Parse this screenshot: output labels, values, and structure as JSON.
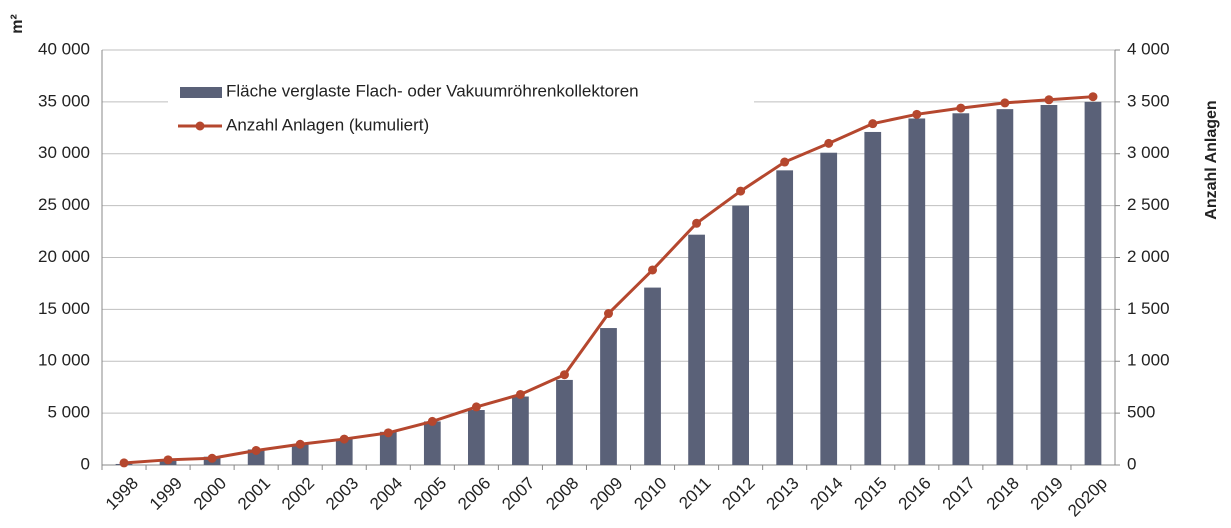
{
  "chart_data": {
    "type": "bar_line",
    "ylabel": "m²",
    "y2label": "Anzahl Anlagen",
    "categories": [
      "1998",
      "1999",
      "2000",
      "2001",
      "2002",
      "2003",
      "2004",
      "2005",
      "2006",
      "2007",
      "2008",
      "2009",
      "2010",
      "2011",
      "2012",
      "2013",
      "2014",
      "2015",
      "2016",
      "2017",
      "2018",
      "2019",
      "2020p"
    ],
    "series": [
      {
        "name": "Fläche verglaste Flach- oder Vakuumröhrenkollektoren",
        "color": "#5a6178",
        "type": "bar",
        "values": [
          100,
          400,
          800,
          1500,
          2000,
          2500,
          3200,
          4200,
          5300,
          6600,
          8200,
          13200,
          17100,
          22200,
          25000,
          28400,
          30100,
          32100,
          33400,
          33900,
          34300,
          34700,
          35000
        ]
      },
      {
        "name": "Anzahl Anlagen (kumuliert)",
        "color": "#b5472e",
        "type": "line",
        "axis": "y2",
        "values": [
          20,
          50,
          65,
          140,
          200,
          250,
          310,
          420,
          560,
          680,
          870,
          1460,
          1880,
          2330,
          2640,
          2920,
          3100,
          3290,
          3380,
          3440,
          3490,
          3520,
          3550
        ]
      }
    ],
    "ylim": [
      0,
      40000
    ],
    "yticks": [
      0,
      {
        "value": 5000,
        "label": "5 000"
      },
      {
        "value": 10000,
        "label": "10 000"
      },
      {
        "value": 15000,
        "label": "15 000"
      },
      {
        "value": 20000,
        "label": "20 000"
      },
      {
        "value": 25000,
        "label": "25 000"
      },
      {
        "value": 30000,
        "label": "30 000"
      },
      {
        "value": 35000,
        "label": "35 000"
      },
      {
        "value": 40000,
        "label": "40 000"
      }
    ],
    "y2lim": [
      0,
      4000
    ],
    "y2ticks": [
      0,
      500,
      {
        "value": 1000,
        "label": "1 000"
      },
      {
        "value": 1500,
        "label": "1 500"
      },
      {
        "value": 2000,
        "label": "2 000"
      },
      {
        "value": 2500,
        "label": "2 500"
      },
      {
        "value": 3000,
        "label": "3 000"
      },
      {
        "value": 3500,
        "label": "3 500"
      },
      {
        "value": 4000,
        "label": "4 000"
      }
    ],
    "grid": true
  }
}
